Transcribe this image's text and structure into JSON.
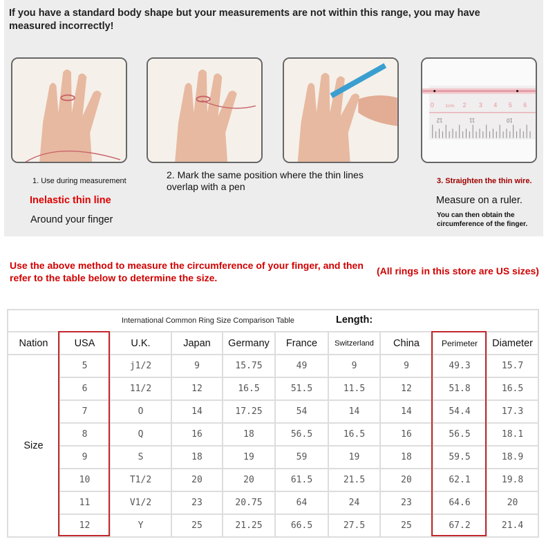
{
  "intro": "If you have a standard body shape but your measurements are not within this range, you may have measured incorrectly!",
  "steps": [
    {
      "label": "1. Use during measurement",
      "line1": "Inelastic thin line",
      "line2": "Around your finger"
    },
    {
      "label": "2. Mark the same position where the thin lines overlap with a pen"
    },
    {
      "label": "3. Straighten the thin wire.",
      "line1": "Measure on a ruler.",
      "line2": "You can then obtain the circumference of the finger."
    }
  ],
  "ruler": {
    "top_ticks": [
      "0",
      "1cm",
      "2",
      "3",
      "4",
      "5",
      "6"
    ],
    "bottom_ticks": [
      "12",
      "11",
      "10"
    ]
  },
  "instruction": "Use the above method to measure the circumference of your finger, and then refer to the table below to determine the size.",
  "us_note": "(All rings in this store are US sizes)",
  "table": {
    "title": "International Common Ring Size Comparison Table",
    "length_label": "Length:",
    "headers": [
      "Nation",
      "USA",
      "U.K.",
      "Japan",
      "Germany",
      "France",
      "Switzerland",
      "China",
      "Perimeter",
      "Diameter"
    ],
    "row_label": "Size",
    "rows": [
      [
        "5",
        "j1/2",
        "9",
        "15.75",
        "49",
        "9",
        "9",
        "49.3",
        "15.7"
      ],
      [
        "6",
        "11/2",
        "12",
        "16.5",
        "51.5",
        "11.5",
        "12",
        "51.8",
        "16.5"
      ],
      [
        "7",
        "O",
        "14",
        "17.25",
        "54",
        "14",
        "14",
        "54.4",
        "17.3"
      ],
      [
        "8",
        "Q",
        "16",
        "18",
        "56.5",
        "16.5",
        "16",
        "56.5",
        "18.1"
      ],
      [
        "9",
        "S",
        "18",
        "19",
        "59",
        "19",
        "18",
        "59.5",
        "18.9"
      ],
      [
        "10",
        "T1/2",
        "20",
        "20",
        "61.5",
        "21.5",
        "20",
        "62.1",
        "19.8"
      ],
      [
        "11",
        "V1/2",
        "23",
        "20.75",
        "64",
        "24",
        "23",
        "64.6",
        "20"
      ],
      [
        "12",
        "Y",
        "25",
        "21.25",
        "66.5",
        "27.5",
        "25",
        "67.2",
        "21.4"
      ]
    ]
  },
  "colors": {
    "highlight": "#c0282d",
    "red_text": "#e00000",
    "panel": "#ededed"
  }
}
